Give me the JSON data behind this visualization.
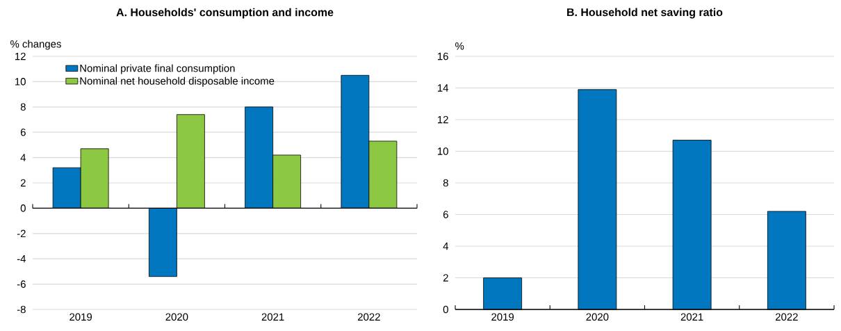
{
  "chart_data": [
    {
      "type": "bar",
      "title": "A. Households' consumption and income",
      "ylabel": "% changes",
      "categories": [
        "2019",
        "2020",
        "2021",
        "2022"
      ],
      "series": [
        {
          "name": "Nominal private final consumption",
          "color": "#0077bf",
          "values": [
            3.2,
            -5.4,
            8.0,
            10.5
          ]
        },
        {
          "name": "Nominal net household disposable income",
          "color": "#8cc841",
          "values": [
            4.7,
            7.4,
            4.2,
            5.3
          ]
        }
      ],
      "ylim": [
        -8,
        12
      ],
      "yticks": [
        -8,
        -6,
        -4,
        -2,
        0,
        2,
        4,
        6,
        8,
        10,
        12
      ],
      "grid": "y",
      "legend": "top left"
    },
    {
      "type": "bar",
      "title": "B. Household net saving ratio",
      "ylabel": "%",
      "categories": [
        "2019",
        "2020",
        "2021",
        "2022"
      ],
      "values": [
        2.0,
        13.9,
        10.7,
        6.2
      ],
      "color": "#0077bf",
      "ylim": [
        0,
        16
      ],
      "yticks": [
        0,
        2,
        4,
        6,
        8,
        10,
        12,
        14,
        16
      ],
      "grid": "y"
    }
  ]
}
